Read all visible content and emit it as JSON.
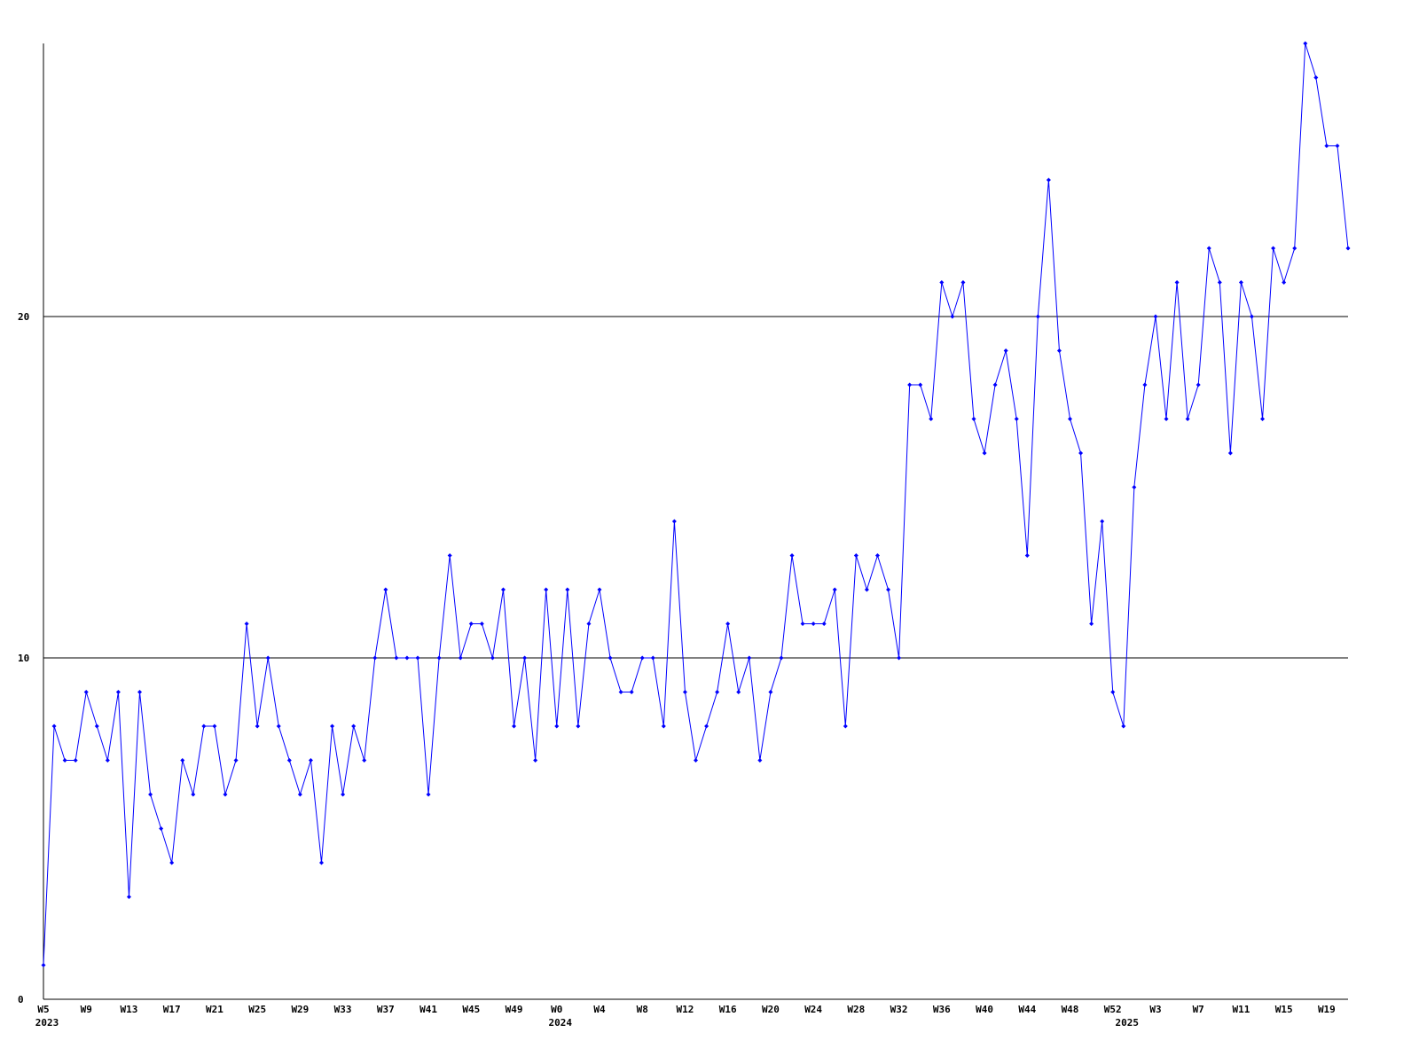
{
  "chart_data": {
    "type": "line",
    "categories": [
      "W5",
      null,
      null,
      null,
      "W9",
      null,
      null,
      null,
      "W13",
      null,
      null,
      null,
      "W17",
      null,
      null,
      null,
      "W21",
      null,
      null,
      null,
      "W25",
      null,
      null,
      null,
      "W29",
      null,
      null,
      null,
      "W33",
      null,
      null,
      null,
      "W37",
      null,
      null,
      null,
      "W41",
      null,
      null,
      null,
      "W45",
      null,
      null,
      null,
      "W49",
      null,
      null,
      null,
      "W0",
      null,
      null,
      null,
      "W4",
      null,
      null,
      null,
      "W8",
      null,
      null,
      null,
      "W12",
      null,
      null,
      null,
      "W16",
      null,
      null,
      null,
      "W20",
      null,
      null,
      null,
      "W24",
      null,
      null,
      null,
      "W28",
      null,
      null,
      null,
      "W32",
      null,
      null,
      null,
      "W36",
      null,
      null,
      null,
      "W40",
      null,
      null,
      null,
      "W44",
      null,
      null,
      null,
      "W48",
      null,
      null,
      null,
      "W52",
      null,
      null,
      null,
      "W3",
      null,
      null,
      null,
      "W7",
      null,
      null,
      null,
      "W11",
      null,
      null,
      null,
      "W15",
      null,
      null,
      null,
      "W19",
      null,
      null
    ],
    "x_groups": [
      {
        "label": "2023",
        "index": 0
      },
      {
        "label": "2024",
        "index": 48
      },
      {
        "label": "2025",
        "index": 101
      }
    ],
    "series": [
      {
        "color": "#0000ff",
        "values": [
          1,
          8,
          7,
          7,
          9,
          8,
          7,
          9,
          3,
          9,
          6,
          5,
          4,
          7,
          6,
          8,
          8,
          6,
          7,
          11,
          8,
          10,
          8,
          7,
          6,
          7,
          4,
          8,
          6,
          8,
          7,
          10,
          12,
          10,
          10,
          10,
          6,
          10,
          13,
          10,
          11,
          11,
          10,
          12,
          8,
          10,
          7,
          12,
          8,
          12,
          8,
          11,
          12,
          10,
          9,
          9,
          10,
          10,
          8,
          14,
          9,
          7,
          8,
          9,
          11,
          9,
          10,
          7,
          9,
          10,
          13,
          11,
          11,
          11,
          12,
          8,
          13,
          12,
          13,
          12,
          10,
          18,
          18,
          17,
          21,
          20,
          21,
          17,
          16,
          18,
          19,
          17,
          13,
          20,
          24,
          19,
          17,
          16,
          11,
          14,
          9,
          8,
          15,
          18,
          20,
          17,
          21,
          17,
          18,
          22,
          21,
          16,
          21,
          20,
          17,
          22,
          21,
          22,
          28,
          27,
          25,
          25,
          22
        ]
      }
    ],
    "ylim": [
      0,
      28
    ],
    "yticks": [
      0,
      10,
      20
    ],
    "grid": true
  }
}
